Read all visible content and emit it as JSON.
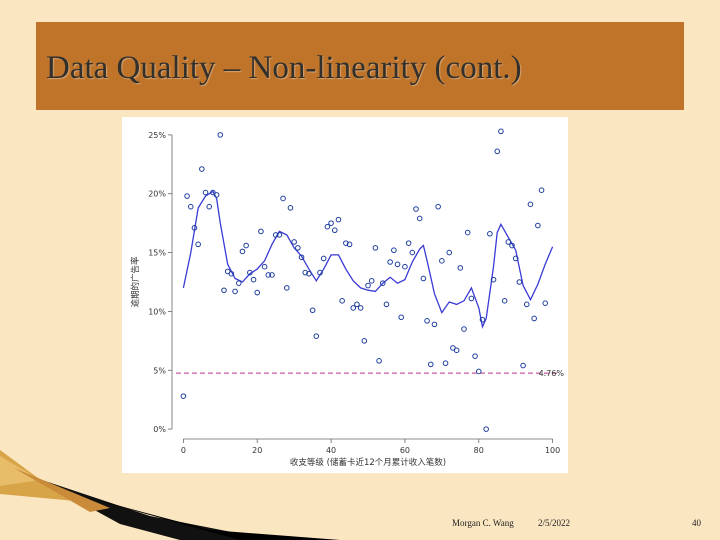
{
  "slide": {
    "title": "Data Quality – Non-linearity (cont.)",
    "footer": {
      "author": "Morgan C. Wang",
      "date": "2/5/2022",
      "page": "40"
    }
  },
  "colors": {
    "background": "#fbe6c2",
    "title_bar": "#bf742a",
    "points": "#1f3f9f",
    "smoother": "#3a3ad6",
    "reference_line": "#c0308c"
  },
  "chart_data": {
    "type": "scatter",
    "xlabel": "收支等级 (储蓄卡近12个月累计收入笔数)",
    "ylabel": "逾期的广告率",
    "xlim": [
      -2,
      102
    ],
    "ylim": [
      -0.5,
      25.5
    ],
    "x_ticks": [
      0,
      20,
      40,
      60,
      80,
      100
    ],
    "x_tick_labels": [
      "0",
      "20",
      "40",
      "60",
      "80",
      "100"
    ],
    "y_ticks": [
      0,
      5,
      10,
      15,
      20,
      25
    ],
    "y_tick_labels": [
      "0%",
      "5%",
      "10%",
      "15%",
      "20%",
      "25%"
    ],
    "grid": false,
    "reference_line": {
      "y": 4.76,
      "label": "4.76%"
    },
    "points": [
      [
        0,
        2.8
      ],
      [
        1,
        19.8
      ],
      [
        2,
        18.9
      ],
      [
        3,
        17.1
      ],
      [
        4,
        15.7
      ],
      [
        5,
        22.1
      ],
      [
        6,
        20.1
      ],
      [
        7,
        18.9
      ],
      [
        8,
        20.1
      ],
      [
        9,
        19.9
      ],
      [
        10,
        25
      ],
      [
        11,
        11.8
      ],
      [
        12,
        13.4
      ],
      [
        13,
        13.2
      ],
      [
        14,
        11.7
      ],
      [
        15,
        12.4
      ],
      [
        16,
        15.1
      ],
      [
        17,
        15.6
      ],
      [
        18,
        13.3
      ],
      [
        19,
        12.7
      ],
      [
        20,
        11.6
      ],
      [
        21,
        16.8
      ],
      [
        22,
        13.8
      ],
      [
        23,
        13.1
      ],
      [
        24,
        13.1
      ],
      [
        25,
        16.5
      ],
      [
        26,
        16.5
      ],
      [
        27,
        19.6
      ],
      [
        28,
        12
      ],
      [
        29,
        18.8
      ],
      [
        30,
        15.9
      ],
      [
        31,
        15.4
      ],
      [
        32,
        14.6
      ],
      [
        33,
        13.3
      ],
      [
        34,
        13.2
      ],
      [
        35,
        10.1
      ],
      [
        36,
        7.9
      ],
      [
        37,
        13.3
      ],
      [
        38,
        14.5
      ],
      [
        39,
        17.2
      ],
      [
        40,
        17.5
      ],
      [
        41,
        16.9
      ],
      [
        42,
        17.8
      ],
      [
        43,
        10.9
      ],
      [
        44,
        15.8
      ],
      [
        45,
        15.7
      ],
      [
        46,
        10.3
      ],
      [
        47,
        10.6
      ],
      [
        48,
        10.3
      ],
      [
        49,
        7.5
      ],
      [
        50,
        12.2
      ],
      [
        51,
        12.6
      ],
      [
        52,
        15.4
      ],
      [
        53,
        5.8
      ],
      [
        54,
        12.4
      ],
      [
        55,
        10.6
      ],
      [
        56,
        14.2
      ],
      [
        57,
        15.2
      ],
      [
        58,
        14
      ],
      [
        59,
        9.5
      ],
      [
        60,
        13.8
      ],
      [
        61,
        15.8
      ],
      [
        62,
        15
      ],
      [
        63,
        18.7
      ],
      [
        64,
        17.9
      ],
      [
        65,
        12.8
      ],
      [
        66,
        9.2
      ],
      [
        67,
        5.5
      ],
      [
        68,
        8.9
      ],
      [
        69,
        18.9
      ],
      [
        70,
        14.3
      ],
      [
        71,
        5.6
      ],
      [
        72,
        15
      ],
      [
        73,
        6.9
      ],
      [
        74,
        6.7
      ],
      [
        75,
        13.7
      ],
      [
        76,
        8.5
      ],
      [
        77,
        16.7
      ],
      [
        78,
        11.1
      ],
      [
        79,
        6.2
      ],
      [
        80,
        4.9
      ],
      [
        81,
        9.3
      ],
      [
        82,
        0
      ],
      [
        83,
        16.6
      ],
      [
        84,
        12.7
      ],
      [
        85,
        23.6
      ],
      [
        86,
        25.3
      ],
      [
        87,
        10.9
      ],
      [
        88,
        15.9
      ],
      [
        89,
        15.6
      ],
      [
        90,
        14.5
      ],
      [
        91,
        12.5
      ],
      [
        92,
        5.4
      ],
      [
        93,
        10.6
      ],
      [
        94,
        19.1
      ],
      [
        95,
        9.4
      ],
      [
        96,
        17.3
      ],
      [
        97,
        20.3
      ],
      [
        98,
        10.7
      ]
    ],
    "smoother": [
      [
        0,
        12
      ],
      [
        2,
        15
      ],
      [
        4,
        18.8
      ],
      [
        6,
        19.8
      ],
      [
        8,
        20.2
      ],
      [
        9,
        19.6
      ],
      [
        10,
        17.5
      ],
      [
        12,
        14
      ],
      [
        14,
        12.8
      ],
      [
        16,
        12.5
      ],
      [
        18,
        13.2
      ],
      [
        20,
        13.6
      ],
      [
        22,
        14.3
      ],
      [
        24,
        15.7
      ],
      [
        26,
        16.8
      ],
      [
        28,
        16.5
      ],
      [
        30,
        15.4
      ],
      [
        32,
        14.7
      ],
      [
        34,
        13.6
      ],
      [
        36,
        12.6
      ],
      [
        38,
        13.6
      ],
      [
        40,
        14.8
      ],
      [
        42,
        14.8
      ],
      [
        44,
        13.6
      ],
      [
        46,
        12.6
      ],
      [
        48,
        12
      ],
      [
        50,
        11.8
      ],
      [
        52,
        11.7
      ],
      [
        54,
        12.4
      ],
      [
        56,
        12.9
      ],
      [
        58,
        12.4
      ],
      [
        60,
        12.7
      ],
      [
        62,
        14.2
      ],
      [
        64,
        15.3
      ],
      [
        65,
        15.6
      ],
      [
        66,
        14.3
      ],
      [
        68,
        11.5
      ],
      [
        70,
        9.9
      ],
      [
        72,
        10.8
      ],
      [
        74,
        10.6
      ],
      [
        76,
        10.9
      ],
      [
        78,
        12
      ],
      [
        80,
        10.3
      ],
      [
        81,
        8.7
      ],
      [
        82,
        9.4
      ],
      [
        84,
        13.8
      ],
      [
        85,
        16.7
      ],
      [
        86,
        17.4
      ],
      [
        88,
        16.3
      ],
      [
        90,
        15.2
      ],
      [
        92,
        12.2
      ],
      [
        94,
        11
      ],
      [
        96,
        12.3
      ],
      [
        98,
        14
      ],
      [
        100,
        15.5
      ]
    ]
  }
}
